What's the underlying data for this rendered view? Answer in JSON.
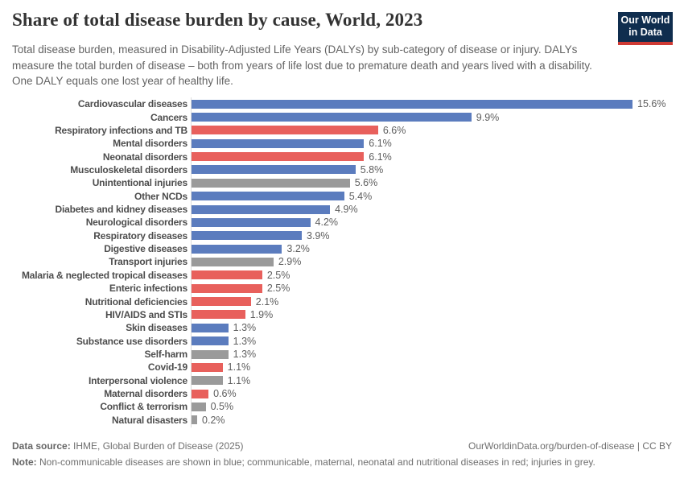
{
  "header": {
    "title": "Share of total disease burden by cause, World, 2023",
    "subtitle": "Total disease burden, measured in Disability-Adjusted Life Years (DALYs) by sub-category of disease or injury. DALYs measure the total burden of disease – both from years of life lost due to premature death and years lived with a disability. One DALY equals one lost year of healthy life.",
    "logo_line1": "Our World",
    "logo_line2": "in Data",
    "logo_bg_color": "#0f2d4e",
    "logo_stripe_color": "#cf3a34"
  },
  "chart_data": {
    "type": "bar",
    "orientation": "horizontal",
    "title": "Share of total disease burden by cause, World, 2023",
    "unit": "%",
    "xlim": [
      0,
      16
    ],
    "grid": false,
    "legend": "none",
    "categories": [
      "Cardiovascular diseases",
      "Cancers",
      "Respiratory infections and TB",
      "Mental disorders",
      "Neonatal disorders",
      "Musculoskeletal disorders",
      "Unintentional injuries",
      "Other NCDs",
      "Diabetes and kidney diseases",
      "Neurological disorders",
      "Respiratory diseases",
      "Digestive diseases",
      "Transport injuries",
      "Malaria & neglected tropical diseases",
      "Enteric infections",
      "Nutritional deficiencies",
      "HIV/AIDS and STIs",
      "Skin diseases",
      "Substance use disorders",
      "Self-harm",
      "Covid-19",
      "Interpersonal violence",
      "Maternal disorders",
      "Conflict & terrorism",
      "Natural disasters"
    ],
    "values": [
      15.6,
      9.9,
      6.6,
      6.1,
      6.1,
      5.8,
      5.6,
      5.4,
      4.9,
      4.2,
      3.9,
      3.2,
      2.9,
      2.5,
      2.5,
      2.1,
      1.9,
      1.3,
      1.3,
      1.3,
      1.1,
      1.1,
      0.6,
      0.5,
      0.2
    ],
    "value_labels": [
      "15.6%",
      "9.9%",
      "6.6%",
      "6.1%",
      "6.1%",
      "5.8%",
      "5.6%",
      "5.4%",
      "4.9%",
      "4.2%",
      "3.9%",
      "3.2%",
      "2.9%",
      "2.5%",
      "2.5%",
      "2.1%",
      "1.9%",
      "1.3%",
      "1.3%",
      "1.3%",
      "1.1%",
      "1.1%",
      "0.6%",
      "0.5%",
      "0.2%"
    ],
    "groups": [
      "ncd",
      "ncd",
      "cmnn",
      "ncd",
      "cmnn",
      "ncd",
      "injury",
      "ncd",
      "ncd",
      "ncd",
      "ncd",
      "ncd",
      "injury",
      "cmnn",
      "cmnn",
      "cmnn",
      "cmnn",
      "ncd",
      "ncd",
      "injury",
      "cmnn",
      "injury",
      "cmnn",
      "injury",
      "injury"
    ],
    "palette": {
      "ncd": "#5b7cbe",
      "cmnn": "#e8605c",
      "injury": "#9a9a9a"
    },
    "axis_color": "#dcdcdc"
  },
  "footer": {
    "source_label": "Data source:",
    "source_text": " IHME, Global Burden of Disease (2025)",
    "credit": "OurWorldinData.org/burden-of-disease | CC BY",
    "note_label": "Note:",
    "note_text": " Non-communicable diseases are shown in blue; communicable, maternal, neonatal and nutritional diseases in red; injuries in grey."
  }
}
